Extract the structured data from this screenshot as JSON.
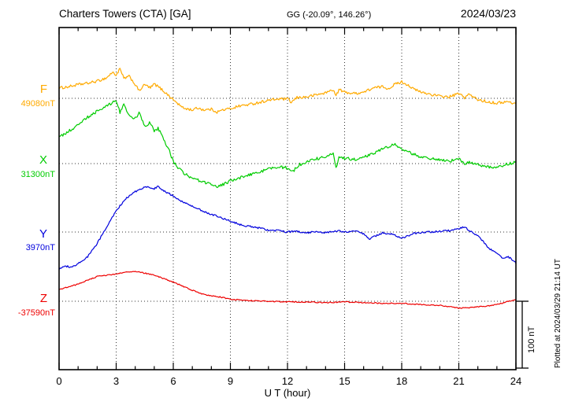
{
  "header": {
    "station": "Charters Towers (CTA)  [GA]",
    "coordinates": "GG (-20.09°, 146.26°)",
    "date": "2024/03/23"
  },
  "axis": {
    "xlabel": "U T (hour)"
  },
  "annotations": {
    "plotted_at": "Plotted at 2024/03/29 21:14 UT",
    "scale_bar_label": "100 nT"
  },
  "chart_data": {
    "type": "line",
    "title": "Charters Towers (CTA) [GA]",
    "subtitle": "GG (-20.09°, 146.26°)",
    "date": "2024/03/23",
    "xlabel": "U T (hour)",
    "xlim": [
      0,
      24
    ],
    "x_ticks": [
      0,
      3,
      6,
      9,
      12,
      15,
      18,
      21,
      24
    ],
    "grid": "dotted vertical gridlines every 3 hours; dotted horizontal baseline per trace",
    "units": "nT",
    "scale_bar_nT": 100,
    "note": "point values are offsets in nT relative to each trace baseline value",
    "series": [
      {
        "name": "F",
        "color": "#ffaa00",
        "baseline_label": "49080nT",
        "baseline_nT": 49080,
        "points": [
          [
            0,
            15
          ],
          [
            0.5,
            17
          ],
          [
            1,
            20
          ],
          [
            1.5,
            22
          ],
          [
            2,
            25
          ],
          [
            2.5,
            30
          ],
          [
            2.8,
            38
          ],
          [
            3,
            34
          ],
          [
            3.2,
            43
          ],
          [
            3.4,
            29
          ],
          [
            3.7,
            32
          ],
          [
            4,
            20
          ],
          [
            4.2,
            11
          ],
          [
            4.5,
            20
          ],
          [
            4.8,
            15
          ],
          [
            5,
            21
          ],
          [
            5.3,
            15
          ],
          [
            5.6,
            8
          ],
          [
            6,
            -2
          ],
          [
            6.5,
            -14
          ],
          [
            7,
            -17
          ],
          [
            7.3,
            -14
          ],
          [
            7.6,
            -17
          ],
          [
            8,
            -16
          ],
          [
            8.3,
            -20
          ],
          [
            8.6,
            -17
          ],
          [
            9,
            -15
          ],
          [
            9.5,
            -11
          ],
          [
            10,
            -9
          ],
          [
            10.5,
            -6
          ],
          [
            11,
            -3
          ],
          [
            11.5,
            -1
          ],
          [
            12,
            -1
          ],
          [
            12.2,
            -6
          ],
          [
            12.5,
            1
          ],
          [
            13,
            2
          ],
          [
            13.5,
            5
          ],
          [
            14,
            8
          ],
          [
            14.4,
            13
          ],
          [
            14.55,
            3
          ],
          [
            14.7,
            13
          ],
          [
            15,
            9
          ],
          [
            15.5,
            7
          ],
          [
            16,
            9
          ],
          [
            16.5,
            15
          ],
          [
            17,
            17
          ],
          [
            17.3,
            14
          ],
          [
            17.6,
            20
          ],
          [
            18,
            24
          ],
          [
            18.3,
            20
          ],
          [
            18.6,
            14
          ],
          [
            19,
            9
          ],
          [
            19.5,
            6
          ],
          [
            20,
            3
          ],
          [
            20.5,
            2
          ],
          [
            21,
            7
          ],
          [
            21.3,
            1
          ],
          [
            21.5,
            6
          ],
          [
            22,
            -2
          ],
          [
            22.5,
            -5
          ],
          [
            23,
            -7
          ],
          [
            23.5,
            -5
          ],
          [
            24,
            -8
          ]
        ]
      },
      {
        "name": "X",
        "color": "#00cc00",
        "baseline_label": "31300nT",
        "baseline_nT": 31300,
        "points": [
          [
            0,
            38
          ],
          [
            0.5,
            47
          ],
          [
            1,
            56
          ],
          [
            1.5,
            68
          ],
          [
            2,
            76
          ],
          [
            2.3,
            80
          ],
          [
            2.6,
            86
          ],
          [
            3,
            92
          ],
          [
            3.2,
            75
          ],
          [
            3.4,
            86
          ],
          [
            3.7,
            69
          ],
          [
            4,
            66
          ],
          [
            4.2,
            74
          ],
          [
            4.5,
            55
          ],
          [
            4.8,
            60
          ],
          [
            5,
            46
          ],
          [
            5.2,
            52
          ],
          [
            5.5,
            34
          ],
          [
            5.8,
            18
          ],
          [
            6,
            3
          ],
          [
            6.3,
            -7
          ],
          [
            6.6,
            -15
          ],
          [
            7,
            -22
          ],
          [
            7.5,
            -26
          ],
          [
            8,
            -31
          ],
          [
            8.3,
            -34
          ],
          [
            8.6,
            -31
          ],
          [
            9,
            -25
          ],
          [
            9.5,
            -21
          ],
          [
            10,
            -16
          ],
          [
            10.5,
            -13
          ],
          [
            11,
            -8
          ],
          [
            11.5,
            -5
          ],
          [
            12,
            -6
          ],
          [
            12.3,
            -11
          ],
          [
            12.6,
            -2
          ],
          [
            13,
            2
          ],
          [
            13.5,
            7
          ],
          [
            14,
            10
          ],
          [
            14.4,
            14
          ],
          [
            14.55,
            -7
          ],
          [
            14.7,
            11
          ],
          [
            15,
            8
          ],
          [
            15.5,
            6
          ],
          [
            16,
            10
          ],
          [
            16.5,
            15
          ],
          [
            17,
            21
          ],
          [
            17.3,
            25
          ],
          [
            17.6,
            28
          ],
          [
            18,
            22
          ],
          [
            18.5,
            15
          ],
          [
            19,
            10
          ],
          [
            19.5,
            7
          ],
          [
            20,
            6
          ],
          [
            20.5,
            3
          ],
          [
            21,
            8
          ],
          [
            21.3,
            -1
          ],
          [
            21.6,
            2
          ],
          [
            22,
            -2
          ],
          [
            22.5,
            -5
          ],
          [
            23,
            -5
          ],
          [
            23.5,
            -1
          ],
          [
            24,
            2
          ]
        ]
      },
      {
        "name": "Y",
        "color": "#0000dd",
        "baseline_label": "3970nT",
        "baseline_nT": 3970,
        "points": [
          [
            0,
            -54
          ],
          [
            0.3,
            -49
          ],
          [
            0.6,
            -52
          ],
          [
            1,
            -46
          ],
          [
            1.5,
            -36
          ],
          [
            2,
            -17
          ],
          [
            2.5,
            8
          ],
          [
            3,
            31
          ],
          [
            3.5,
            49
          ],
          [
            4,
            59
          ],
          [
            4.3,
            63
          ],
          [
            4.6,
            66
          ],
          [
            5,
            63
          ],
          [
            5.2,
            67
          ],
          [
            5.5,
            60
          ],
          [
            6,
            53
          ],
          [
            6.5,
            44
          ],
          [
            7,
            38
          ],
          [
            7.5,
            31
          ],
          [
            8,
            26
          ],
          [
            8.5,
            21
          ],
          [
            9,
            16
          ],
          [
            9.5,
            11
          ],
          [
            10,
            8
          ],
          [
            10.5,
            6
          ],
          [
            11,
            3
          ],
          [
            11.5,
            2
          ],
          [
            12,
            0
          ],
          [
            12.5,
            1
          ],
          [
            13,
            -1
          ],
          [
            13.5,
            1
          ],
          [
            14,
            -1
          ],
          [
            14.5,
            2
          ],
          [
            15,
            0
          ],
          [
            15.5,
            2
          ],
          [
            16,
            -3
          ],
          [
            16.3,
            -10
          ],
          [
            16.6,
            -6
          ],
          [
            17,
            -1
          ],
          [
            17.5,
            -3
          ],
          [
            18,
            -9
          ],
          [
            18.3,
            -6
          ],
          [
            18.6,
            -2
          ],
          [
            19,
            -1
          ],
          [
            19.5,
            0
          ],
          [
            20,
            1
          ],
          [
            20.5,
            2
          ],
          [
            21,
            5
          ],
          [
            21.3,
            8
          ],
          [
            21.6,
            1
          ],
          [
            22,
            -5
          ],
          [
            22.3,
            -15
          ],
          [
            22.6,
            -24
          ],
          [
            23,
            -31
          ],
          [
            23.3,
            -39
          ],
          [
            23.6,
            -36
          ],
          [
            24,
            -45
          ]
        ]
      },
      {
        "name": "Z",
        "color": "#ee0000",
        "baseline_label": "-37590nT",
        "baseline_nT": -37590,
        "points": [
          [
            0,
            17
          ],
          [
            0.5,
            21
          ],
          [
            1,
            25
          ],
          [
            1.5,
            31
          ],
          [
            2,
            36
          ],
          [
            2.5,
            38
          ],
          [
            3,
            40
          ],
          [
            3.5,
            43
          ],
          [
            4,
            44
          ],
          [
            4.5,
            41
          ],
          [
            5,
            38
          ],
          [
            5.5,
            33
          ],
          [
            6,
            28
          ],
          [
            6.5,
            22
          ],
          [
            7,
            16
          ],
          [
            7.5,
            11
          ],
          [
            8,
            8
          ],
          [
            8.5,
            6
          ],
          [
            9,
            3
          ],
          [
            9.5,
            2
          ],
          [
            10,
            1
          ],
          [
            11,
            0
          ],
          [
            12,
            -1
          ],
          [
            13,
            -1
          ],
          [
            14,
            -2
          ],
          [
            15,
            -1
          ],
          [
            16,
            -2
          ],
          [
            17,
            -3
          ],
          [
            18,
            -3
          ],
          [
            19,
            -5
          ],
          [
            20,
            -6
          ],
          [
            20.5,
            -8
          ],
          [
            21,
            -10
          ],
          [
            21.5,
            -10
          ],
          [
            22,
            -8
          ],
          [
            22.5,
            -7
          ],
          [
            23,
            -5
          ],
          [
            23.5,
            -1
          ],
          [
            24,
            2
          ]
        ]
      }
    ]
  }
}
